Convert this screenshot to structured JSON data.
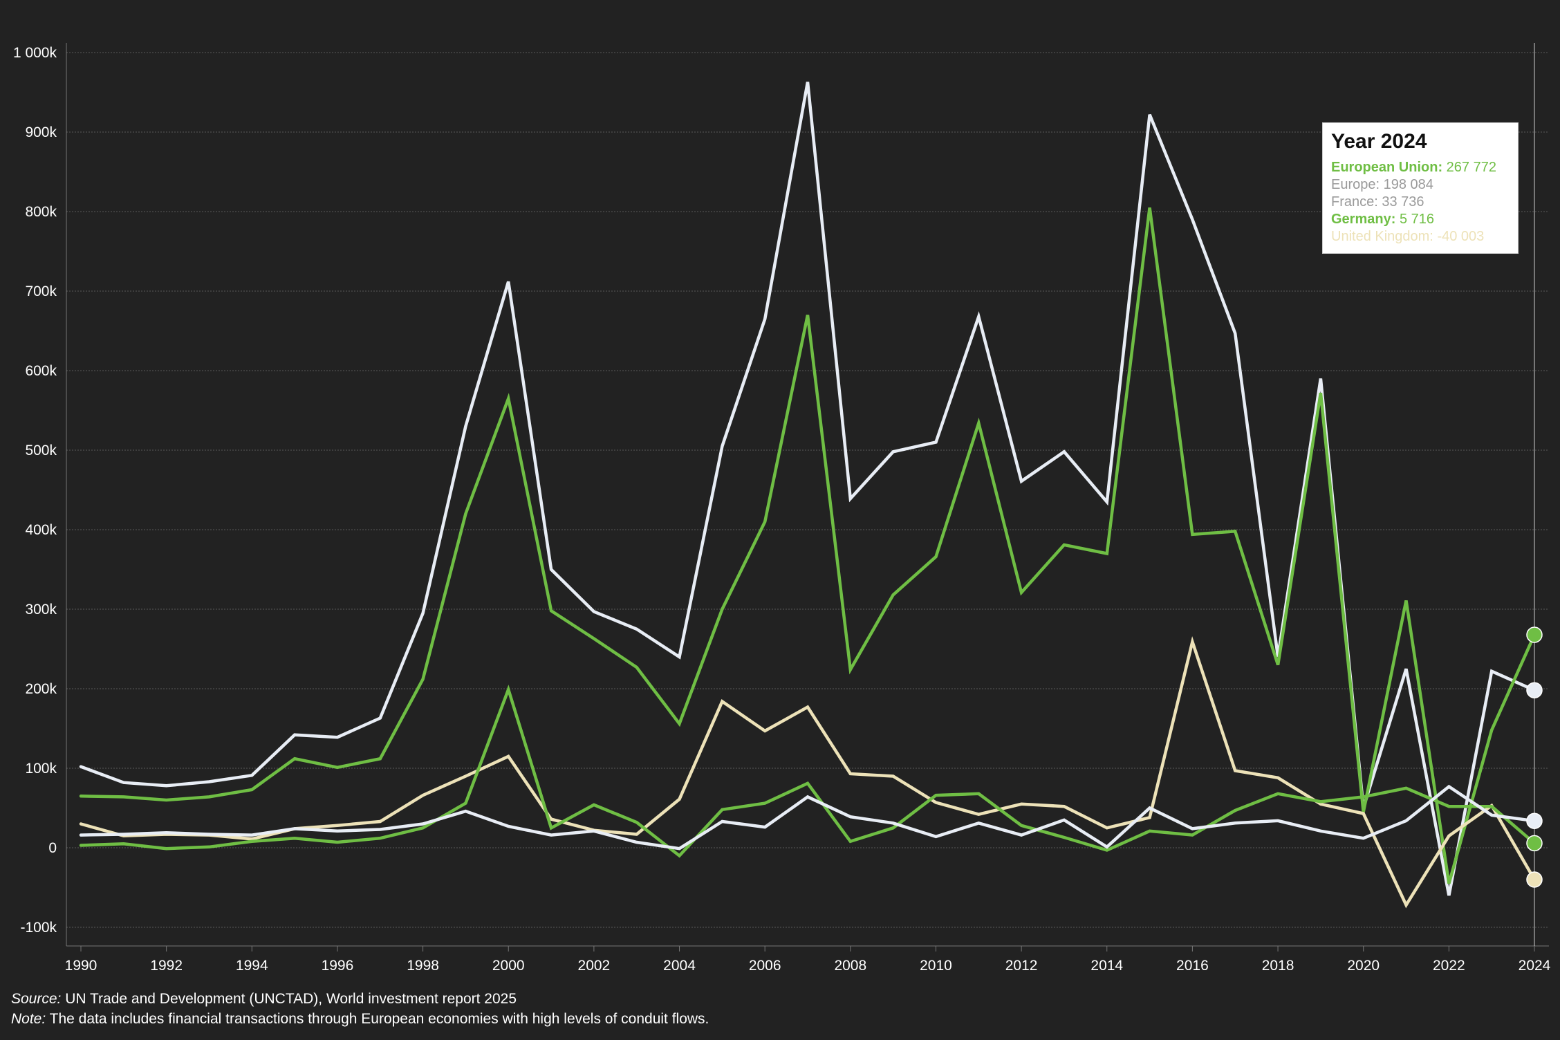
{
  "colors": {
    "background": "#222222",
    "grid": "#5a5a5a",
    "european_union": "#6fbe44",
    "europe": "#e8edf5",
    "france": "#e8edf5",
    "germany": "#6fbe44",
    "united_kingdom": "#ede2b8",
    "tooltip_europe": "#9a9a9a",
    "tooltip_france": "#9a9a9a",
    "tooltip_germany": "#6fbe44",
    "tooltip_uk": "#ede2b8"
  },
  "chart_data": {
    "type": "line",
    "x": [
      1990,
      1991,
      1992,
      1993,
      1994,
      1995,
      1996,
      1997,
      1998,
      1999,
      2000,
      2001,
      2002,
      2003,
      2004,
      2005,
      2006,
      2007,
      2008,
      2009,
      2010,
      2011,
      2012,
      2013,
      2014,
      2015,
      2016,
      2017,
      2018,
      2019,
      2020,
      2021,
      2022,
      2023,
      2024
    ],
    "x_tick_labels": [
      "1990",
      "1992",
      "1994",
      "1996",
      "1998",
      "2000",
      "2002",
      "2004",
      "2006",
      "2008",
      "2010",
      "2012",
      "2014",
      "2016",
      "2018",
      "2020",
      "2022",
      "2024"
    ],
    "y_tick_values": [
      -100000,
      0,
      100000,
      200000,
      300000,
      400000,
      500000,
      600000,
      700000,
      800000,
      900000,
      1000000
    ],
    "y_tick_labels": [
      "-100k",
      "0",
      "100k",
      "200k",
      "300k",
      "400k",
      "500k",
      "600k",
      "700k",
      "800k",
      "900k",
      "1 000k"
    ],
    "ylim": [
      -125000,
      1010000
    ],
    "xlim": [
      1990,
      2024
    ],
    "grid": true,
    "series": [
      {
        "name": "Europe",
        "color_key": "europe",
        "values": [
          102000,
          82000,
          78000,
          83000,
          91000,
          142000,
          139000,
          163000,
          295000,
          530000,
          712000,
          350000,
          297000,
          275000,
          240000,
          505000,
          665000,
          963000,
          439000,
          498000,
          510000,
          668000,
          461000,
          498000,
          435000,
          922000,
          790000,
          647000,
          240000,
          590000,
          50000,
          225000,
          -60000,
          222000,
          198084
        ]
      },
      {
        "name": "European Union",
        "color_key": "european_union",
        "values": [
          65000,
          64000,
          60000,
          64000,
          73000,
          112000,
          101000,
          112000,
          212000,
          420000,
          565000,
          298000,
          263000,
          227000,
          156000,
          300000,
          410000,
          670000,
          224000,
          318000,
          366000,
          534000,
          321000,
          381000,
          370000,
          805000,
          394000,
          398000,
          230000,
          572000,
          45000,
          311000,
          -45000,
          148000,
          267772
        ]
      },
      {
        "name": "United Kingdom",
        "color_key": "united_kingdom",
        "values": [
          30000,
          15000,
          17000,
          16000,
          11000,
          24000,
          28000,
          33000,
          66000,
          90000,
          115000,
          36000,
          22000,
          17000,
          61000,
          184000,
          147000,
          177000,
          93000,
          90000,
          57000,
          42000,
          55000,
          52000,
          25000,
          38000,
          259000,
          97000,
          88000,
          55000,
          43000,
          -72000,
          15000,
          53000,
          -40003
        ]
      },
      {
        "name": "Germany",
        "color_key": "germany",
        "values": [
          3000,
          5000,
          -1000,
          1000,
          8000,
          12000,
          7000,
          12000,
          25000,
          56000,
          199000,
          25000,
          54000,
          32000,
          -10000,
          48000,
          56000,
          81000,
          8000,
          25000,
          66000,
          68000,
          28000,
          13000,
          -3000,
          21000,
          16000,
          47000,
          68000,
          58000,
          64000,
          75000,
          52000,
          52000,
          5716
        ]
      },
      {
        "name": "France",
        "color_key": "france",
        "values": [
          16000,
          17000,
          19000,
          17000,
          16000,
          24000,
          21000,
          23000,
          30000,
          46000,
          27000,
          16000,
          21000,
          7000,
          -1000,
          33000,
          26000,
          64000,
          39000,
          31000,
          14000,
          31000,
          16000,
          35000,
          1000,
          50000,
          24000,
          31000,
          34000,
          21000,
          12000,
          34000,
          77000,
          41000,
          33736
        ]
      }
    ],
    "tooltip": {
      "title": "Year 2024",
      "rows": [
        {
          "label": "European Union:",
          "value": "267 772",
          "color_key": "european_union",
          "bold": true
        },
        {
          "label": "Europe:",
          "value": "198 084",
          "color_key": "tooltip_europe",
          "bold": false
        },
        {
          "label": "France:",
          "value": "33 736",
          "color_key": "tooltip_france",
          "bold": false
        },
        {
          "label": "Germany:",
          "value": "5 716",
          "color_key": "tooltip_germany",
          "bold": true
        },
        {
          "label": "United Kingdom:",
          "value": "-40 003",
          "color_key": "tooltip_uk",
          "bold": false
        }
      ]
    },
    "highlight_year": 2024
  },
  "footer": {
    "source_label": "Source:",
    "source_text": " UN Trade and Development (UNCTAD), World investment report 2025",
    "note_label": "Note:",
    "note_text": " The data includes financial transactions through European economies with high levels of conduit flows."
  }
}
